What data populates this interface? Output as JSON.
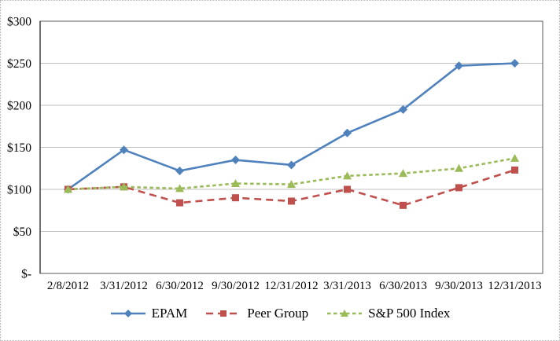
{
  "chart_data": {
    "type": "line",
    "title": "",
    "x_categories": [
      "2/8/2012",
      "3/31/2012",
      "6/30/2012",
      "9/30/2012",
      "12/31/2012",
      "3/31/2013",
      "6/30/2013",
      "9/30/2013",
      "12/31/2013"
    ],
    "y_axis": {
      "tick_labels": [
        "$300",
        "$250",
        "$200",
        "$150",
        "$100",
        "$50",
        "$-"
      ],
      "tick_values": [
        300,
        250,
        200,
        150,
        100,
        50,
        0
      ],
      "min": 0,
      "max": 300
    },
    "series": [
      {
        "name": "EPAM",
        "color": "#4F81BD",
        "marker": "diamond",
        "line_style": "solid",
        "values": [
          100,
          147,
          122,
          135,
          129,
          167,
          195,
          247,
          250
        ]
      },
      {
        "name": "Peer Group",
        "color": "#C0504D",
        "marker": "square",
        "line_style": "dashed",
        "values": [
          100,
          103,
          84,
          90,
          86,
          100,
          81,
          102,
          123
        ]
      },
      {
        "name": "S&P 500 Index",
        "color": "#9BBB59",
        "marker": "triangle",
        "line_style": "short-dash",
        "values": [
          100,
          103,
          101,
          107,
          106,
          116,
          119,
          125,
          137
        ]
      }
    ],
    "grid": true,
    "legend_position": "bottom"
  },
  "colors": {
    "gridline": "#BFBFBF",
    "plot_border": "#595959",
    "y_axis_line": "#262626",
    "text": "#000000",
    "background": "#FFFFFF"
  }
}
